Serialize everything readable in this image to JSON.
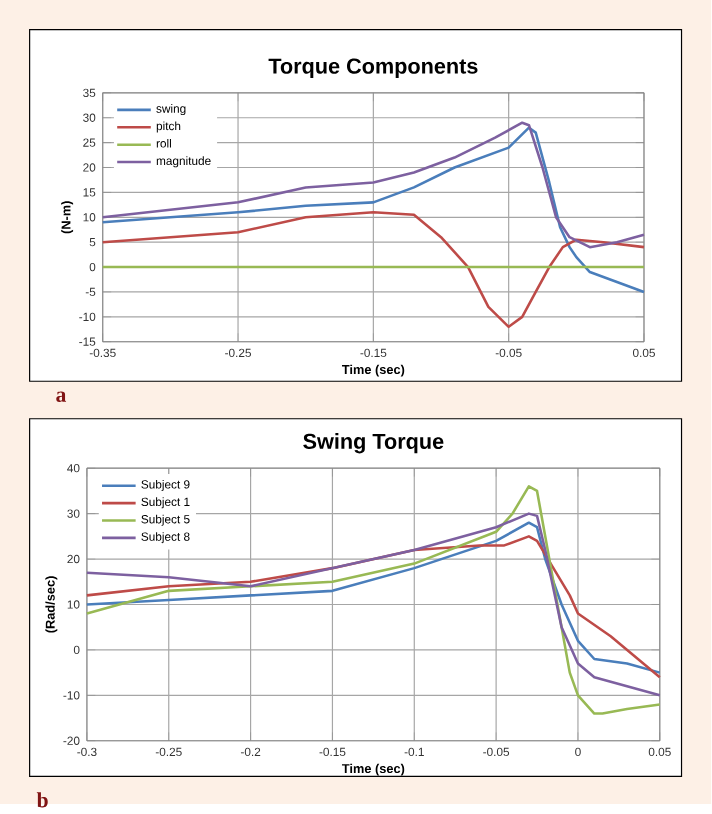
{
  "chart_data": [
    {
      "type": "line",
      "title": "Torque Components",
      "xlabel": "Time (sec)",
      "ylabel": "(N-m)",
      "annotations": [
        "a"
      ],
      "xlim": [
        -0.35,
        0.05
      ],
      "ylim": [
        -15,
        35
      ],
      "xticks": [
        -0.35,
        -0.25,
        -0.15,
        -0.05,
        0.05
      ],
      "yticks": [
        -15,
        -10,
        -5,
        0,
        5,
        10,
        15,
        20,
        25,
        30,
        35
      ],
      "grid": true,
      "legend": "top left",
      "series": [
        {
          "name": "swing",
          "color": "#4a7ebb",
          "x": [
            -0.35,
            -0.3,
            -0.25,
            -0.2,
            -0.15,
            -0.12,
            -0.09,
            -0.05,
            -0.035,
            -0.03,
            -0.02,
            -0.012,
            -0.005,
            0.0,
            0.01,
            0.03,
            0.05
          ],
          "values": [
            9,
            10,
            11,
            12.3,
            13,
            16,
            20,
            24,
            28,
            27,
            17,
            8,
            4,
            2,
            -1,
            -3,
            -5
          ]
        },
        {
          "name": "pitch",
          "color": "#be4b48",
          "x": [
            -0.35,
            -0.25,
            -0.2,
            -0.15,
            -0.12,
            -0.1,
            -0.08,
            -0.065,
            -0.05,
            -0.04,
            -0.03,
            -0.02,
            -0.01,
            0.0,
            0.02,
            0.05
          ],
          "values": [
            5,
            7,
            10,
            11,
            10.5,
            6,
            0,
            -8,
            -12,
            -10,
            -5,
            0,
            4,
            5.5,
            5,
            4
          ]
        },
        {
          "name": "roll",
          "color": "#98b954",
          "x": [
            -0.35,
            0.05
          ],
          "values": [
            0,
            0
          ]
        },
        {
          "name": "magnitude",
          "color": "#7d60a0",
          "x": [
            -0.35,
            -0.25,
            -0.2,
            -0.15,
            -0.12,
            -0.09,
            -0.06,
            -0.04,
            -0.035,
            -0.025,
            -0.015,
            -0.005,
            0.01,
            0.03,
            0.05
          ],
          "values": [
            10,
            13,
            16,
            17,
            19,
            22,
            26,
            29,
            28.5,
            20,
            10,
            6,
            4,
            5,
            6.5
          ]
        }
      ]
    },
    {
      "type": "line",
      "title": "Swing Torque",
      "xlabel": "Time (sec)",
      "ylabel": "(Rad/sec)",
      "annotations": [
        "b"
      ],
      "xlim": [
        -0.3,
        0.05
      ],
      "ylim": [
        -20,
        40
      ],
      "xticks": [
        -0.3,
        -0.25,
        -0.2,
        -0.15,
        -0.1,
        -0.05,
        0,
        0.05
      ],
      "yticks": [
        -20,
        -10,
        0,
        10,
        20,
        30,
        40
      ],
      "grid": true,
      "legend": "top left",
      "series": [
        {
          "name": "Subject 9",
          "color": "#4a7ebb",
          "x": [
            -0.3,
            -0.25,
            -0.2,
            -0.15,
            -0.1,
            -0.05,
            -0.03,
            -0.025,
            -0.02,
            -0.01,
            0.0,
            0.01,
            0.03,
            0.05
          ],
          "values": [
            10,
            11,
            12,
            13,
            18,
            24,
            28,
            27,
            20,
            10,
            2,
            -2,
            -3,
            -5
          ]
        },
        {
          "name": "Subject 1",
          "color": "#be4b48",
          "x": [
            -0.3,
            -0.25,
            -0.2,
            -0.15,
            -0.1,
            -0.06,
            -0.045,
            -0.03,
            -0.025,
            -0.015,
            -0.005,
            0.0,
            0.02,
            0.05
          ],
          "values": [
            12,
            14,
            15,
            18,
            22,
            23,
            23,
            25,
            24,
            18,
            12,
            8,
            3,
            -6
          ]
        },
        {
          "name": "Subject 5",
          "color": "#98b954",
          "x": [
            -0.3,
            -0.25,
            -0.2,
            -0.15,
            -0.1,
            -0.05,
            -0.04,
            -0.03,
            -0.025,
            -0.02,
            -0.01,
            -0.005,
            0.0,
            0.01,
            0.015,
            0.03,
            0.05
          ],
          "values": [
            8,
            13,
            14,
            15,
            19,
            26,
            30,
            36,
            35,
            25,
            5,
            -5,
            -10,
            -14,
            -14,
            -13,
            -12
          ]
        },
        {
          "name": "Subject 8",
          "color": "#7d60a0",
          "x": [
            -0.3,
            -0.25,
            -0.2,
            -0.15,
            -0.1,
            -0.05,
            -0.03,
            -0.025,
            -0.02,
            -0.01,
            0.0,
            0.01,
            0.03,
            0.05
          ],
          "values": [
            17,
            16,
            14,
            18,
            22,
            27,
            30,
            29.5,
            22,
            5,
            -3,
            -6,
            -8,
            -10
          ]
        }
      ]
    }
  ]
}
